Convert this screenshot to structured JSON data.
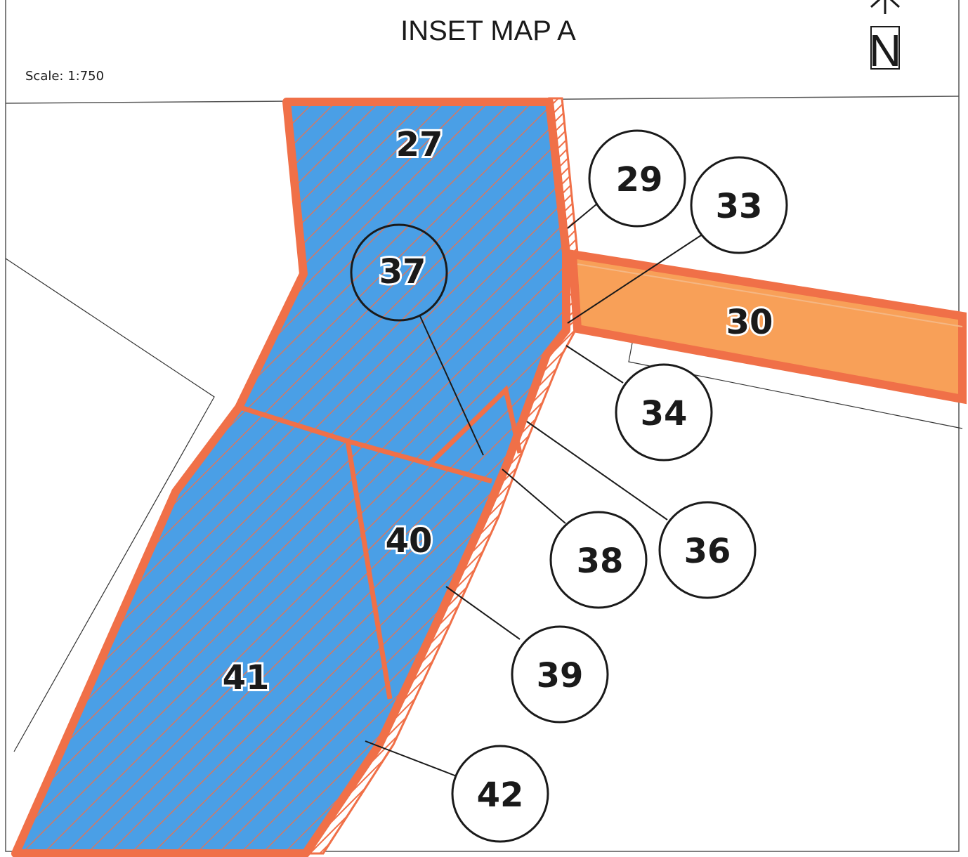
{
  "header": {
    "title": "INSET MAP A",
    "scale": "Scale: 1:750",
    "north": "N"
  },
  "colors": {
    "parcel_blue": "#4a9fe6",
    "boundary_orange": "#f07048",
    "road_fill": "#f8a058",
    "outline": "#1a1a1a"
  },
  "parcels": {
    "p27": "27",
    "p30": "30",
    "p40": "40",
    "p41": "41"
  },
  "callouts": {
    "c29": "29",
    "c33": "33",
    "c34": "34",
    "c36": "36",
    "c37": "37",
    "c38": "38",
    "c39": "39",
    "c42": "42"
  }
}
